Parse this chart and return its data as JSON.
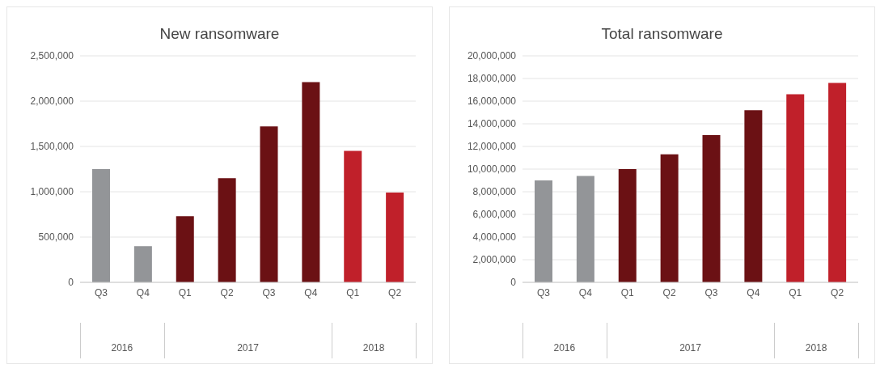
{
  "chart_data": [
    {
      "type": "bar",
      "title": "New ransomware",
      "categories": [
        "Q3",
        "Q4",
        "Q1",
        "Q2",
        "Q3",
        "Q4",
        "Q1",
        "Q2"
      ],
      "values": [
        1250000,
        400000,
        730000,
        1150000,
        1720000,
        2210000,
        1450000,
        990000
      ],
      "colors": [
        "#939598",
        "#939598",
        "#6b1114",
        "#6b1114",
        "#6b1114",
        "#6b1114",
        "#c0202a",
        "#c0202a"
      ],
      "ylim": [
        0,
        2500000
      ],
      "yticks": [
        {
          "value": 0,
          "label": "0"
        },
        {
          "value": 500000,
          "label": "500,000"
        },
        {
          "value": 1000000,
          "label": "1,000,000"
        },
        {
          "value": 1500000,
          "label": "1,500,000"
        },
        {
          "value": 2000000,
          "label": "2,000,000"
        },
        {
          "value": 2500000,
          "label": "2,500,000"
        }
      ],
      "grid": "y",
      "annotations": [
        "2016",
        "2017",
        "2018"
      ]
    },
    {
      "type": "bar",
      "title": "Total ransomware",
      "categories": [
        "Q3",
        "Q4",
        "Q1",
        "Q2",
        "Q3",
        "Q4",
        "Q1",
        "Q2"
      ],
      "values": [
        9000000,
        9400000,
        10000000,
        11300000,
        13000000,
        15200000,
        16600000,
        17600000
      ],
      "colors": [
        "#939598",
        "#939598",
        "#6b1114",
        "#6b1114",
        "#6b1114",
        "#6b1114",
        "#c0202a",
        "#c0202a"
      ],
      "ylim": [
        0,
        20000000
      ],
      "yticks": [
        {
          "value": 0,
          "label": "0"
        },
        {
          "value": 2000000,
          "label": "2,000,000"
        },
        {
          "value": 4000000,
          "label": "4,000,000"
        },
        {
          "value": 6000000,
          "label": "6,000,000"
        },
        {
          "value": 8000000,
          "label": "8,000,000"
        },
        {
          "value": 10000000,
          "label": "10,000,000"
        },
        {
          "value": 12000000,
          "label": "12,000,000"
        },
        {
          "value": 14000000,
          "label": "14,000,000"
        },
        {
          "value": 16000000,
          "label": "16,000,000"
        },
        {
          "value": 18000000,
          "label": "18,000,000"
        },
        {
          "value": 20000000,
          "label": "20,000,000"
        }
      ],
      "grid": "y",
      "annotations": [
        "2016",
        "2017",
        "2018"
      ]
    }
  ]
}
